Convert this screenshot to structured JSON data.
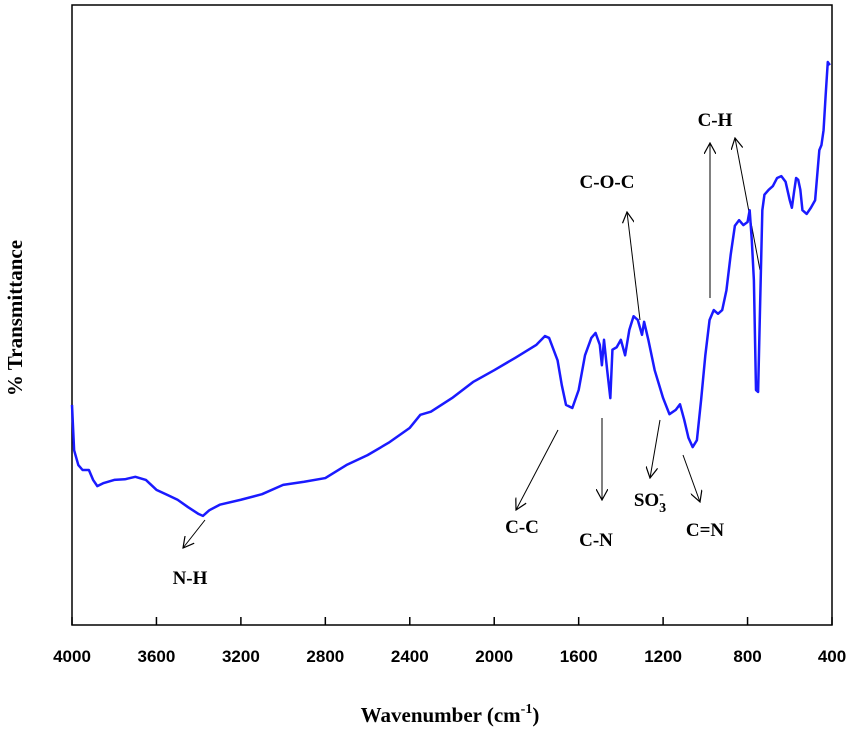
{
  "chart_data": {
    "type": "line",
    "x_label": {
      "text": "Wavenumber (cm",
      "superscript": "-1",
      "suffix": ")"
    },
    "y_label": "% Transmittance",
    "color": "#1a1aff",
    "x": [
      4000,
      3990,
      3970,
      3950,
      3920,
      3900,
      3880,
      3850,
      3820,
      3800,
      3750,
      3700,
      3650,
      3600,
      3550,
      3500,
      3450,
      3400,
      3380,
      3350,
      3300,
      3200,
      3100,
      3000,
      2900,
      2800,
      2700,
      2600,
      2500,
      2400,
      2350,
      2300,
      2200,
      2100,
      2000,
      1900,
      1800,
      1760,
      1740,
      1700,
      1680,
      1660,
      1630,
      1600,
      1570,
      1540,
      1520,
      1500,
      1490,
      1480,
      1465,
      1450,
      1440,
      1420,
      1400,
      1380,
      1360,
      1340,
      1320,
      1300,
      1290,
      1270,
      1240,
      1200,
      1170,
      1140,
      1120,
      1100,
      1080,
      1060,
      1040,
      1020,
      1000,
      980,
      960,
      940,
      920,
      900,
      880,
      860,
      840,
      820,
      800,
      790,
      780,
      770,
      760,
      750,
      740,
      730,
      720,
      700,
      680,
      660,
      640,
      620,
      600,
      590,
      580,
      570,
      560,
      550,
      540,
      520,
      500,
      480,
      460,
      450,
      440,
      430,
      420,
      410
    ],
    "values": [
      35.5,
      28.2,
      25.8,
      25.0,
      25.0,
      23.4,
      22.4,
      22.9,
      23.2,
      23.4,
      23.5,
      23.9,
      23.4,
      21.8,
      21.0,
      20.2,
      19.0,
      17.9,
      17.6,
      18.5,
      19.4,
      20.2,
      21.1,
      22.6,
      23.1,
      23.7,
      25.8,
      27.4,
      29.4,
      31.8,
      33.9,
      34.4,
      36.6,
      39.2,
      41.1,
      43.1,
      45.2,
      46.6,
      46.3,
      42.7,
      38.7,
      35.5,
      35.0,
      37.9,
      43.5,
      46.3,
      47.1,
      45.2,
      41.9,
      46.0,
      41.1,
      36.6,
      44.4,
      44.8,
      46.0,
      43.5,
      47.6,
      49.8,
      49.2,
      46.8,
      48.9,
      46.0,
      41.1,
      36.6,
      34.0,
      34.7,
      35.6,
      33.1,
      30.2,
      28.7,
      29.8,
      36.3,
      43.5,
      49.2,
      50.8,
      50.2,
      50.8,
      54.0,
      59.7,
      64.4,
      65.3,
      64.5,
      65.0,
      66.9,
      62.1,
      55.6,
      37.9,
      37.6,
      52.4,
      66.9,
      69.4,
      70.2,
      70.8,
      72.1,
      72.4,
      71.5,
      68.5,
      67.3,
      69.8,
      72.1,
      71.8,
      70.2,
      66.9,
      66.3,
      67.3,
      68.5,
      76.6,
      77.4,
      79.8,
      85.5,
      90.8,
      90.3
    ],
    "xlim": [
      4000,
      400
    ],
    "xticks": [
      4000,
      3600,
      3200,
      2800,
      2400,
      2000,
      1600,
      1200,
      800,
      400
    ],
    "ylim": [
      0,
      100
    ],
    "annotations": [
      {
        "text": "N-H"
      },
      {
        "text": "C-C"
      },
      {
        "text": "C-N"
      },
      {
        "text": "SO",
        "subscript": "3",
        "superscript": "-"
      },
      {
        "text": "C=N"
      },
      {
        "text": "C-O-C"
      },
      {
        "text": "C-H"
      }
    ]
  }
}
